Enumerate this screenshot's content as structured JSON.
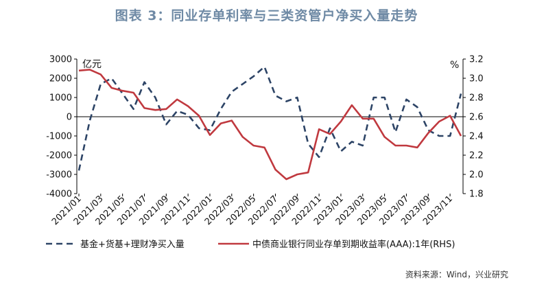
{
  "chart_data": {
    "type": "line",
    "title": "图表 3：同业存单利率与三类资管户净买入量走势",
    "left_axis_unit": "亿元",
    "right_axis_unit": "%",
    "y_left": {
      "min": -4000,
      "max": 3000,
      "ticks": [
        3000,
        2000,
        1000,
        0,
        -1000,
        -2000,
        -3000,
        -4000
      ]
    },
    "y_right": {
      "min": 1.8,
      "max": 3.2,
      "ticks": [
        3.2,
        3.0,
        2.8,
        2.6,
        2.4,
        2.2,
        2.0,
        1.8
      ]
    },
    "x_labels": [
      "2021/01",
      "2021/03",
      "2021/05",
      "2021/07",
      "2021/09",
      "2021/11",
      "2022/01",
      "2022/03",
      "2022/05",
      "2022/07",
      "2022/09",
      "2022/11",
      "2023/01",
      "2023/03",
      "2023/05",
      "2023/07",
      "2023/09",
      "2023/11"
    ],
    "months": [
      "2021/01",
      "2021/02",
      "2021/03",
      "2021/04",
      "2021/05",
      "2021/06",
      "2021/07",
      "2021/08",
      "2021/09",
      "2021/10",
      "2021/11",
      "2021/12",
      "2022/01",
      "2022/02",
      "2022/03",
      "2022/04",
      "2022/05",
      "2022/06",
      "2022/07",
      "2022/08",
      "2022/09",
      "2022/10",
      "2022/11",
      "2022/12",
      "2023/01",
      "2023/02",
      "2023/03",
      "2023/04",
      "2023/05",
      "2023/06",
      "2023/07",
      "2023/08",
      "2023/09",
      "2023/10",
      "2023/11",
      "2023/12"
    ],
    "series": [
      {
        "name": "基金+货基+理财净买入量",
        "axis": "left",
        "style": "dashed",
        "color": "#2d4466",
        "values": [
          -2800,
          -200,
          1700,
          2000,
          1200,
          400,
          1800,
          1000,
          -400,
          300,
          100,
          -600,
          -700,
          400,
          1300,
          1700,
          2100,
          2600,
          1100,
          800,
          1000,
          -1400,
          -2100,
          -600,
          -1800,
          -1300,
          -1500,
          1000,
          1000,
          -800,
          900,
          500,
          -700,
          -1000,
          -1000,
          1200
        ]
      },
      {
        "name": "中债商业银行同业存单到期收益率(AAA):1年(RHS)",
        "axis": "right",
        "style": "solid",
        "color": "#c0393f",
        "values": [
          3.08,
          3.09,
          3.04,
          2.9,
          2.87,
          2.85,
          2.69,
          2.67,
          2.68,
          2.78,
          2.71,
          2.61,
          2.41,
          2.53,
          2.56,
          2.39,
          2.3,
          2.28,
          2.05,
          1.95,
          2.0,
          2.02,
          2.47,
          2.42,
          2.55,
          2.72,
          2.58,
          2.58,
          2.39,
          2.3,
          2.3,
          2.28,
          2.43,
          2.55,
          2.61,
          2.4
        ]
      }
    ],
    "legend_position": "bottom",
    "grid": false
  },
  "source_note": "资料来源：Wind，兴业研究"
}
